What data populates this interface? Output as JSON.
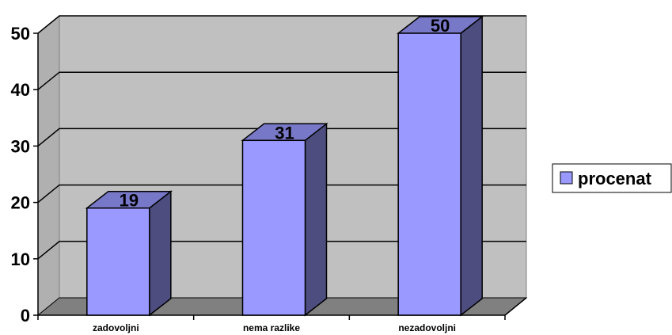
{
  "chart_data": {
    "type": "bar",
    "categories": [
      "zadovoljni",
      "nema razlike",
      "nezadovoljni"
    ],
    "series": [
      {
        "name": "procenat",
        "values": [
          19,
          31,
          50
        ]
      }
    ],
    "ylim": [
      0,
      50
    ],
    "yticks": [
      "0",
      "10",
      "20",
      "30",
      "40",
      "50"
    ],
    "data_labels": [
      "19",
      "31",
      "50"
    ],
    "grid": true,
    "legend_position": "right",
    "style": "3d-column",
    "colors": {
      "bar_front": "#9999ff",
      "bar_side": "#4d4d80",
      "bar_top": "#7878c8",
      "wall": "#c0c0c0",
      "floor": "#808080"
    }
  }
}
